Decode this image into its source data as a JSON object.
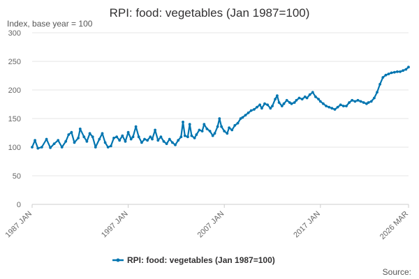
{
  "chart_data": {
    "type": "line",
    "title": "RPI: food: vegetables (Jan 1987=100)",
    "ylabel": "Index, base year = 100",
    "xlabel": "",
    "ylim": [
      0,
      300
    ],
    "yticks": [
      0,
      50,
      100,
      150,
      200,
      250,
      300
    ],
    "xticks": [
      {
        "label": "1987 JAN",
        "t": 1987.0
      },
      {
        "label": "1997 JAN",
        "t": 1997.0
      },
      {
        "label": "2007 JAN",
        "t": 2007.0
      },
      {
        "label": "2017 JAN",
        "t": 2017.0
      },
      {
        "label": "2026 MAR",
        "t": 2026.17
      }
    ],
    "xlim": [
      1987.0,
      2026.17
    ],
    "grid": true,
    "legend_position": "bottom",
    "source_label": "Source:",
    "series": [
      {
        "name": "RPI: food: vegetables (Jan 1987=100)",
        "color": "#0075b0",
        "points": [
          [
            1987.0,
            100
          ],
          [
            1987.3,
            112
          ],
          [
            1987.6,
            98
          ],
          [
            1988.0,
            100
          ],
          [
            1988.5,
            114
          ],
          [
            1988.9,
            99
          ],
          [
            1989.3,
            106
          ],
          [
            1989.7,
            112
          ],
          [
            1990.1,
            100
          ],
          [
            1990.5,
            110
          ],
          [
            1990.8,
            122
          ],
          [
            1991.1,
            126
          ],
          [
            1991.4,
            108
          ],
          [
            1991.8,
            116
          ],
          [
            1992.0,
            132
          ],
          [
            1992.4,
            118
          ],
          [
            1992.7,
            110
          ],
          [
            1993.0,
            124
          ],
          [
            1993.3,
            118
          ],
          [
            1993.6,
            100
          ],
          [
            1994.0,
            114
          ],
          [
            1994.3,
            124
          ],
          [
            1994.6,
            108
          ],
          [
            1994.9,
            100
          ],
          [
            1995.2,
            102
          ],
          [
            1995.5,
            116
          ],
          [
            1995.8,
            118
          ],
          [
            1996.1,
            112
          ],
          [
            1996.4,
            120
          ],
          [
            1996.7,
            110
          ],
          [
            1997.0,
            126
          ],
          [
            1997.3,
            114
          ],
          [
            1997.5,
            118
          ],
          [
            1997.8,
            136
          ],
          [
            1998.1,
            118
          ],
          [
            1998.4,
            108
          ],
          [
            1998.7,
            114
          ],
          [
            1999.0,
            112
          ],
          [
            1999.3,
            118
          ],
          [
            1999.5,
            114
          ],
          [
            1999.8,
            130
          ],
          [
            2000.1,
            112
          ],
          [
            2000.4,
            118
          ],
          [
            2000.7,
            110
          ],
          [
            2001.0,
            106
          ],
          [
            2001.3,
            114
          ],
          [
            2001.6,
            108
          ],
          [
            2001.9,
            104
          ],
          [
            2002.2,
            112
          ],
          [
            2002.5,
            118
          ],
          [
            2002.7,
            144
          ],
          [
            2002.9,
            120
          ],
          [
            2003.2,
            118
          ],
          [
            2003.4,
            140
          ],
          [
            2003.6,
            120
          ],
          [
            2003.9,
            116
          ],
          [
            2004.1,
            122
          ],
          [
            2004.4,
            130
          ],
          [
            2004.7,
            128
          ],
          [
            2004.9,
            140
          ],
          [
            2005.2,
            132
          ],
          [
            2005.5,
            128
          ],
          [
            2005.8,
            120
          ],
          [
            2006.0,
            124
          ],
          [
            2006.3,
            136
          ],
          [
            2006.5,
            150
          ],
          [
            2006.7,
            136
          ],
          [
            2007.0,
            128
          ],
          [
            2007.3,
            124
          ],
          [
            2007.5,
            134
          ],
          [
            2007.8,
            130
          ],
          [
            2008.1,
            138
          ],
          [
            2008.4,
            142
          ],
          [
            2008.7,
            150
          ],
          [
            2008.9,
            152
          ],
          [
            2009.2,
            156
          ],
          [
            2009.5,
            160
          ],
          [
            2009.8,
            164
          ],
          [
            2010.1,
            166
          ],
          [
            2010.4,
            170
          ],
          [
            2010.7,
            174
          ],
          [
            2010.9,
            168
          ],
          [
            2011.2,
            176
          ],
          [
            2011.5,
            174
          ],
          [
            2011.8,
            168
          ],
          [
            2012.0,
            172
          ],
          [
            2012.3,
            184
          ],
          [
            2012.5,
            190
          ],
          [
            2012.7,
            178
          ],
          [
            2013.0,
            172
          ],
          [
            2013.2,
            176
          ],
          [
            2013.5,
            182
          ],
          [
            2013.8,
            178
          ],
          [
            2014.0,
            176
          ],
          [
            2014.3,
            178
          ],
          [
            2014.5,
            182
          ],
          [
            2014.8,
            186
          ],
          [
            2015.1,
            184
          ],
          [
            2015.4,
            188
          ],
          [
            2015.6,
            186
          ],
          [
            2015.9,
            192
          ],
          [
            2016.2,
            196
          ],
          [
            2016.5,
            188
          ],
          [
            2016.8,
            184
          ],
          [
            2017.0,
            180
          ],
          [
            2017.3,
            176
          ],
          [
            2017.6,
            172
          ],
          [
            2017.9,
            170
          ],
          [
            2018.2,
            168
          ],
          [
            2018.5,
            166
          ],
          [
            2018.8,
            170
          ],
          [
            2019.1,
            174
          ],
          [
            2019.4,
            172
          ],
          [
            2019.7,
            172
          ],
          [
            2020.0,
            178
          ],
          [
            2020.3,
            182
          ],
          [
            2020.6,
            180
          ],
          [
            2020.9,
            182
          ],
          [
            2021.2,
            180
          ],
          [
            2021.5,
            178
          ],
          [
            2021.8,
            176
          ],
          [
            2022.0,
            178
          ],
          [
            2022.3,
            180
          ],
          [
            2022.6,
            186
          ],
          [
            2022.9,
            196
          ],
          [
            2023.2,
            210
          ],
          [
            2023.5,
            222
          ],
          [
            2023.8,
            226
          ],
          [
            2024.1,
            228
          ],
          [
            2024.4,
            230
          ],
          [
            2024.7,
            231
          ],
          [
            2025.0,
            232
          ],
          [
            2025.3,
            232
          ],
          [
            2025.6,
            234
          ],
          [
            2025.9,
            236
          ],
          [
            2026.17,
            240
          ]
        ]
      }
    ]
  }
}
